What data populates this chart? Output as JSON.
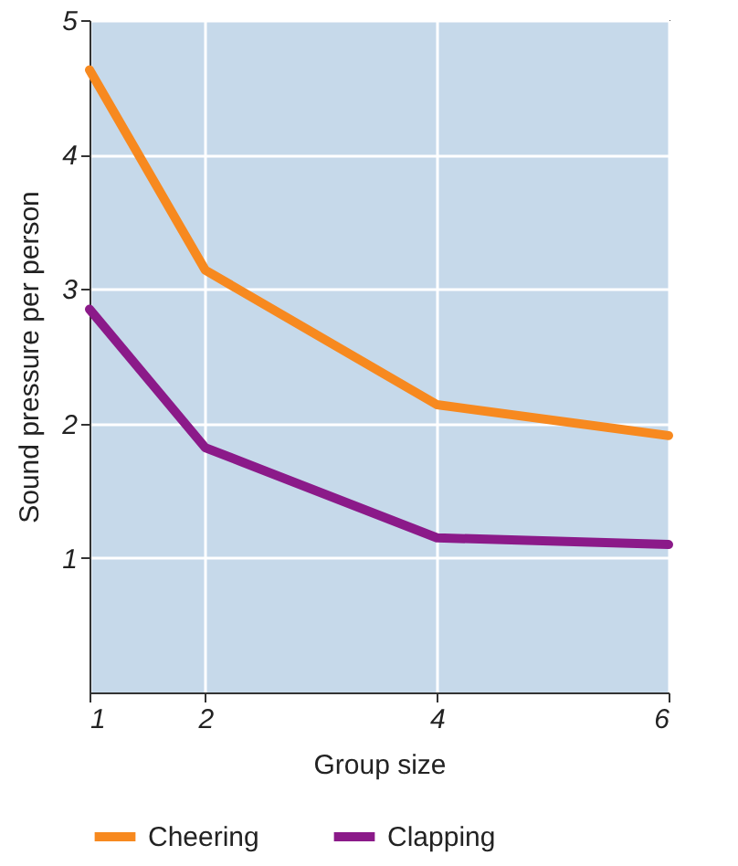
{
  "chart_data": {
    "type": "line",
    "xlabel": "Group size",
    "ylabel": "Sound pressure per person",
    "x": [
      1,
      2,
      4,
      6
    ],
    "series": [
      {
        "name": "Cheering",
        "color": "#f7891f",
        "values": [
          4.63,
          3.14,
          2.14,
          1.91
        ]
      },
      {
        "name": "Clapping",
        "color": "#8b1a89",
        "values": [
          2.85,
          1.82,
          1.15,
          1.1
        ]
      }
    ],
    "xlim": [
      1,
      6
    ],
    "xticks": [
      1,
      2,
      4,
      6
    ],
    "ylim": [
      0,
      5
    ],
    "yticks": [
      1,
      2,
      3,
      4,
      5
    ],
    "grid": true,
    "legend": "bottom"
  }
}
